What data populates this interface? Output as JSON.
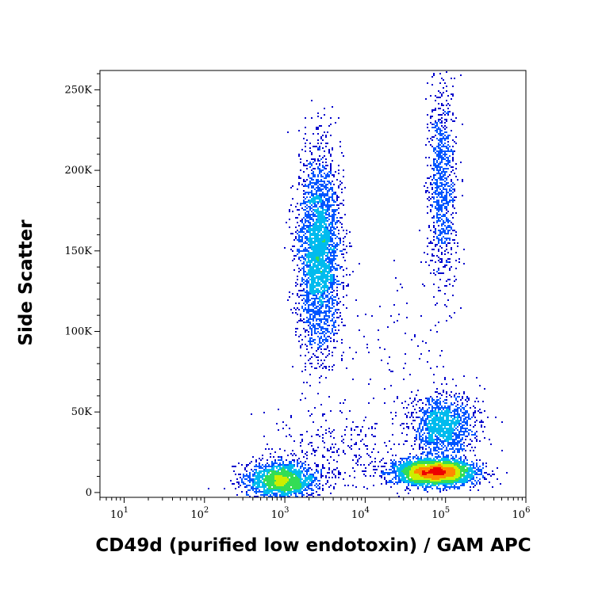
{
  "chart_data": {
    "type": "scatter",
    "title": "",
    "xlabel": "CD49d (purified low endotoxin) / GAM APC",
    "ylabel": "Side Scatter",
    "x_scale": "log",
    "xlim": [
      5,
      1000000
    ],
    "ylim": [
      -3000,
      262000
    ],
    "x_ticks": [
      {
        "value": 10,
        "base": "10",
        "exp": "1"
      },
      {
        "value": 100,
        "base": "10",
        "exp": "2"
      },
      {
        "value": 1000,
        "base": "10",
        "exp": "3"
      },
      {
        "value": 10000,
        "base": "10",
        "exp": "4"
      },
      {
        "value": 100000,
        "base": "10",
        "exp": "5"
      },
      {
        "value": 1000000,
        "base": "10",
        "exp": "6"
      }
    ],
    "y_ticks": [
      {
        "value": 0,
        "label": "0"
      },
      {
        "value": 50000,
        "label": "50K"
      },
      {
        "value": 100000,
        "label": "100K"
      },
      {
        "value": 150000,
        "label": "150K"
      },
      {
        "value": 200000,
        "label": "200K"
      },
      {
        "value": 250000,
        "label": "250K"
      }
    ],
    "grid": false,
    "legend": "none",
    "colormap": [
      "#0000cc",
      "#0055ff",
      "#00bbee",
      "#33dd55",
      "#ccee00",
      "#ff8800",
      "#ee0000"
    ],
    "populations": [
      {
        "log_x_center": 2.95,
        "log_x_sd": 0.22,
        "y_center": 8000,
        "y_sd": 5500,
        "count": 1900
      },
      {
        "log_x_center": 3.42,
        "log_x_sd": 0.13,
        "y_center": 150000,
        "y_sd": 30000,
        "count": 3000
      },
      {
        "log_x_center": 4.85,
        "log_x_sd": 0.25,
        "y_center": 13000,
        "y_sd": 4000,
        "count": 3400
      },
      {
        "log_x_center": 4.95,
        "log_x_sd": 0.2,
        "y_center": 42000,
        "y_sd": 10000,
        "count": 1300
      },
      {
        "log_x_center": 4.95,
        "log_x_sd": 0.09,
        "y_center": 190000,
        "y_sd": 32000,
        "count": 900
      },
      {
        "log_x_center": 3.6,
        "log_x_sd": 0.45,
        "y_center": 25000,
        "y_sd": 14000,
        "count": 300
      },
      {
        "log_x_center": 4.4,
        "log_x_sd": 0.4,
        "y_center": 80000,
        "y_sd": 40000,
        "count": 110
      }
    ]
  }
}
